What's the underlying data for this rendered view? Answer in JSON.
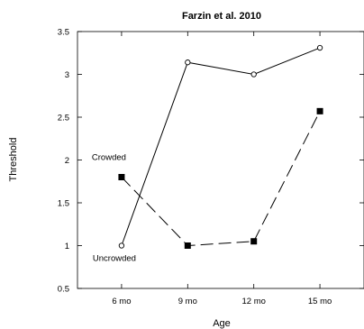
{
  "chart_data": {
    "type": "line",
    "title": "Farzin et al. 2010",
    "xlabel": "Age",
    "ylabel": "Threshold",
    "categories": [
      "6 mo",
      "9 mo",
      "12 mo",
      "15 mo"
    ],
    "x": [
      6,
      9,
      12,
      15
    ],
    "xlim": [
      4,
      17
    ],
    "ylim": [
      0.5,
      3.5
    ],
    "yticks": [
      0.5,
      1,
      1.5,
      2,
      2.5,
      3,
      3.5
    ],
    "ytick_labels": [
      "0.5",
      "1",
      "1.5",
      "2",
      "2.5",
      "3",
      "3.5"
    ],
    "grid": false,
    "series": [
      {
        "name": "Uncrowded",
        "values": [
          1.0,
          3.14,
          3.0,
          3.31
        ],
        "marker": "open-circle",
        "line_style": "solid",
        "color": "#000000"
      },
      {
        "name": "Crowded",
        "values": [
          1.8,
          1.0,
          1.05,
          2.57
        ],
        "marker": "filled-square",
        "line_style": "dashed",
        "color": "#000000"
      }
    ]
  }
}
